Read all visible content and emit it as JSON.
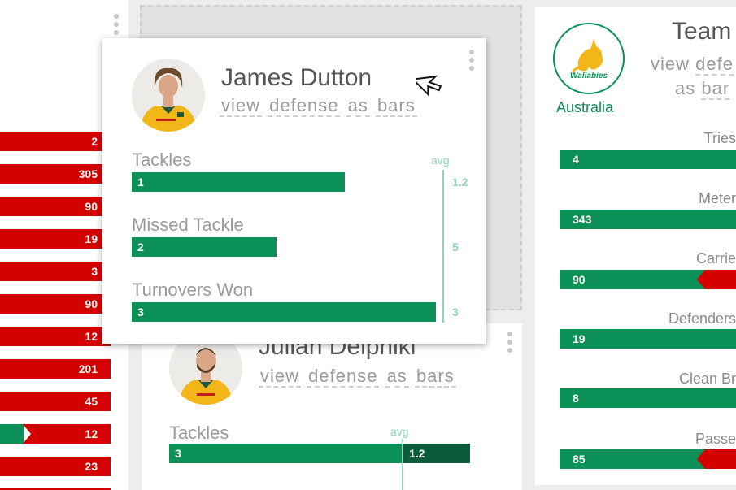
{
  "colors": {
    "green": "#0b9157",
    "dark_green": "#0a5c3a",
    "red": "#d50000",
    "avg": "#8fd3bb"
  },
  "left_column": {
    "values": [
      "2",
      "305",
      "90",
      "19",
      "3",
      "90",
      "12",
      "201",
      "45",
      "12",
      "23"
    ]
  },
  "popup": {
    "player_name": "James Dutton",
    "view_words": [
      "view",
      "defense",
      "as",
      "bars"
    ],
    "avg_label": "avg",
    "stats": [
      {
        "label": "Tackles",
        "value": "1",
        "fraction": 0.7,
        "avg": "1.2"
      },
      {
        "label": "Missed Tackle",
        "value": "2",
        "fraction": 0.475,
        "avg": "5"
      },
      {
        "label": "Turnovers Won",
        "value": "3",
        "fraction": 1.0,
        "avg": "3"
      }
    ]
  },
  "julian": {
    "player_name": "Julian Delpniki",
    "view_words": [
      "view",
      "defense",
      "as",
      "bars"
    ],
    "avg_label": "avg",
    "stats": [
      {
        "label": "Tackles",
        "value": "3",
        "avg": "1.2"
      }
    ]
  },
  "team": {
    "title": "Team",
    "logo_text": "Wallabies",
    "country": "Australia",
    "view_words": [
      "view",
      "defe",
      "as",
      "bar"
    ],
    "stats": [
      {
        "label": "Tries",
        "value": "4",
        "red": false
      },
      {
        "label": "Meter",
        "value": "343",
        "red": false
      },
      {
        "label": "Carrie",
        "value": "90",
        "red": true
      },
      {
        "label": "Defenders",
        "value": "19",
        "red": false
      },
      {
        "label": "Clean Br",
        "value": "8",
        "red": false
      },
      {
        "label": "Passe",
        "value": "85",
        "red": true
      }
    ]
  }
}
